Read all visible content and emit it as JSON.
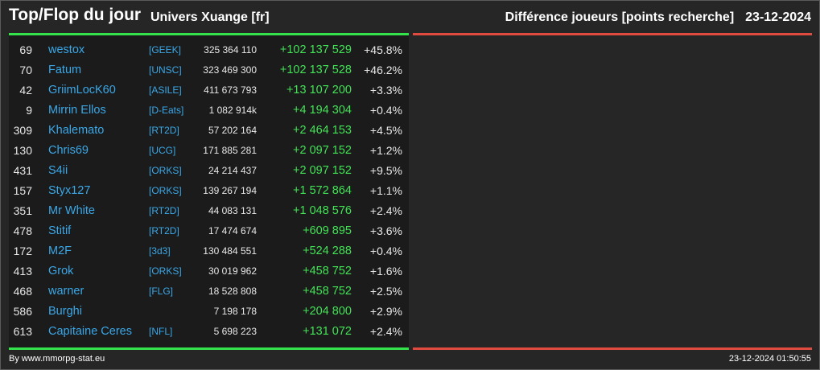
{
  "header": {
    "title": "Top/Flop du jour",
    "universe": "Univers Xuange [fr]",
    "metric": "Différence joueurs [points recherche]",
    "date": "23-12-2024"
  },
  "colors": {
    "positive": "#43e356",
    "negative": "#e04a3f",
    "link": "#3aa8e8",
    "background": "#262626"
  },
  "top_rows": [
    {
      "rank": "69",
      "name": "westox",
      "tag": "[GEEK]",
      "points": "325 364 110",
      "diff": "+102 137 529",
      "pct": "+45.8%"
    },
    {
      "rank": "70",
      "name": "Fatum",
      "tag": "[UNSC]",
      "points": "323 469 300",
      "diff": "+102 137 528",
      "pct": "+46.2%"
    },
    {
      "rank": "42",
      "name": "GriimLocK60",
      "tag": "[ASILE]",
      "points": "411 673 793",
      "diff": "+13 107 200",
      "pct": "+3.3%"
    },
    {
      "rank": "9",
      "name": "Mirrin Ellos",
      "tag": "[D-Eats]",
      "points": "1 082 914k",
      "diff": "+4 194 304",
      "pct": "+0.4%"
    },
    {
      "rank": "309",
      "name": "Khalemato",
      "tag": "[RT2D]",
      "points": "57 202 164",
      "diff": "+2 464 153",
      "pct": "+4.5%"
    },
    {
      "rank": "130",
      "name": "Chris69",
      "tag": "[UCG]",
      "points": "171 885 281",
      "diff": "+2 097 152",
      "pct": "+1.2%"
    },
    {
      "rank": "431",
      "name": "S4ii",
      "tag": "[ORKS]",
      "points": "24 214 437",
      "diff": "+2 097 152",
      "pct": "+9.5%"
    },
    {
      "rank": "157",
      "name": "Styx127",
      "tag": "[ORKS]",
      "points": "139 267 194",
      "diff": "+1 572 864",
      "pct": "+1.1%"
    },
    {
      "rank": "351",
      "name": "Mr White",
      "tag": "[RT2D]",
      "points": "44 083 131",
      "diff": "+1 048 576",
      "pct": "+2.4%"
    },
    {
      "rank": "478",
      "name": "Stitif",
      "tag": "[RT2D]",
      "points": "17 474 674",
      "diff": "+609 895",
      "pct": "+3.6%"
    },
    {
      "rank": "172",
      "name": "M2F",
      "tag": "[3d3]",
      "points": "130 484 551",
      "diff": "+524 288",
      "pct": "+0.4%"
    },
    {
      "rank": "413",
      "name": "Grok",
      "tag": "[ORKS]",
      "points": "30 019 962",
      "diff": "+458 752",
      "pct": "+1.6%"
    },
    {
      "rank": "468",
      "name": "warner",
      "tag": "[FLG]",
      "points": "18 528 808",
      "diff": "+458 752",
      "pct": "+2.5%"
    },
    {
      "rank": "586",
      "name": "Burghi",
      "tag": "",
      "points": "7 198 178",
      "diff": "+204 800",
      "pct": "+2.9%"
    },
    {
      "rank": "613",
      "name": "Capitaine Ceres",
      "tag": "[NFL]",
      "points": "5 698 223",
      "diff": "+131 072",
      "pct": "+2.4%"
    }
  ],
  "flop_rows": [],
  "footer": {
    "credit": "By www.mmorpg-stat.eu",
    "timestamp": "23-12-2024 01:50:55"
  }
}
